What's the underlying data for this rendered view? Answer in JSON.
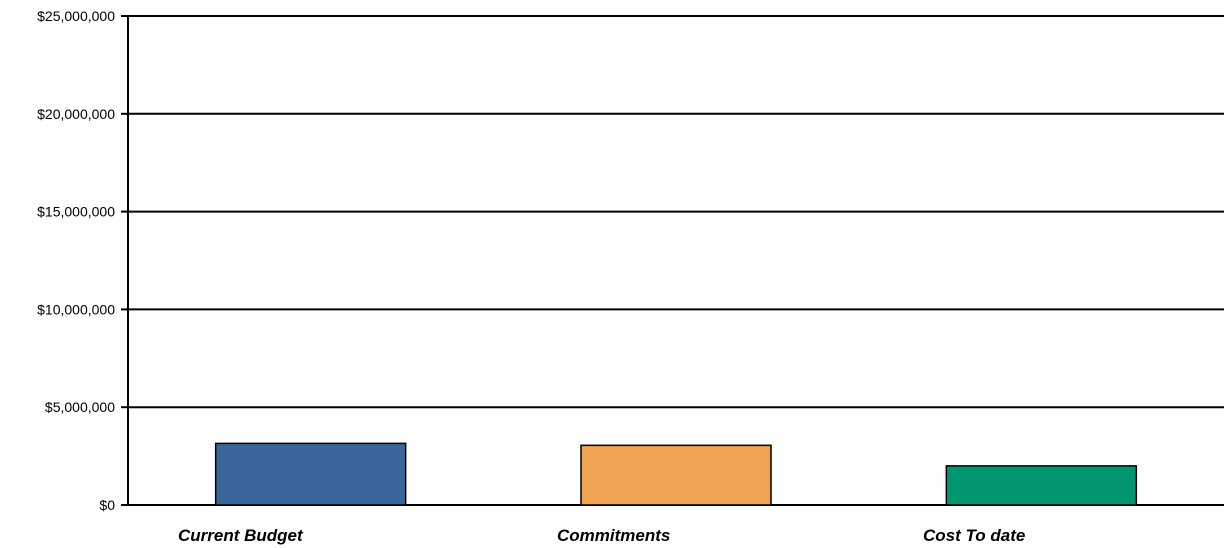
{
  "chart_data": {
    "type": "bar",
    "title": "",
    "xlabel": "",
    "ylabel": "",
    "categories": [
      "Current Budget",
      "Commitments",
      "Cost To date"
    ],
    "values": [
      3150000,
      3050000,
      2000000
    ],
    "colors": [
      "#3B6699",
      "#EFA453",
      "#009670"
    ],
    "ylim": [
      0,
      25000000
    ],
    "yticks": [
      0,
      5000000,
      10000000,
      15000000,
      20000000,
      25000000
    ],
    "ytick_labels": [
      "$0",
      "$5,000,000",
      "$10,000,000",
      "$15,000,000",
      "$20,000,000",
      "$25,000,000"
    ],
    "grid": true,
    "legend": "none"
  }
}
